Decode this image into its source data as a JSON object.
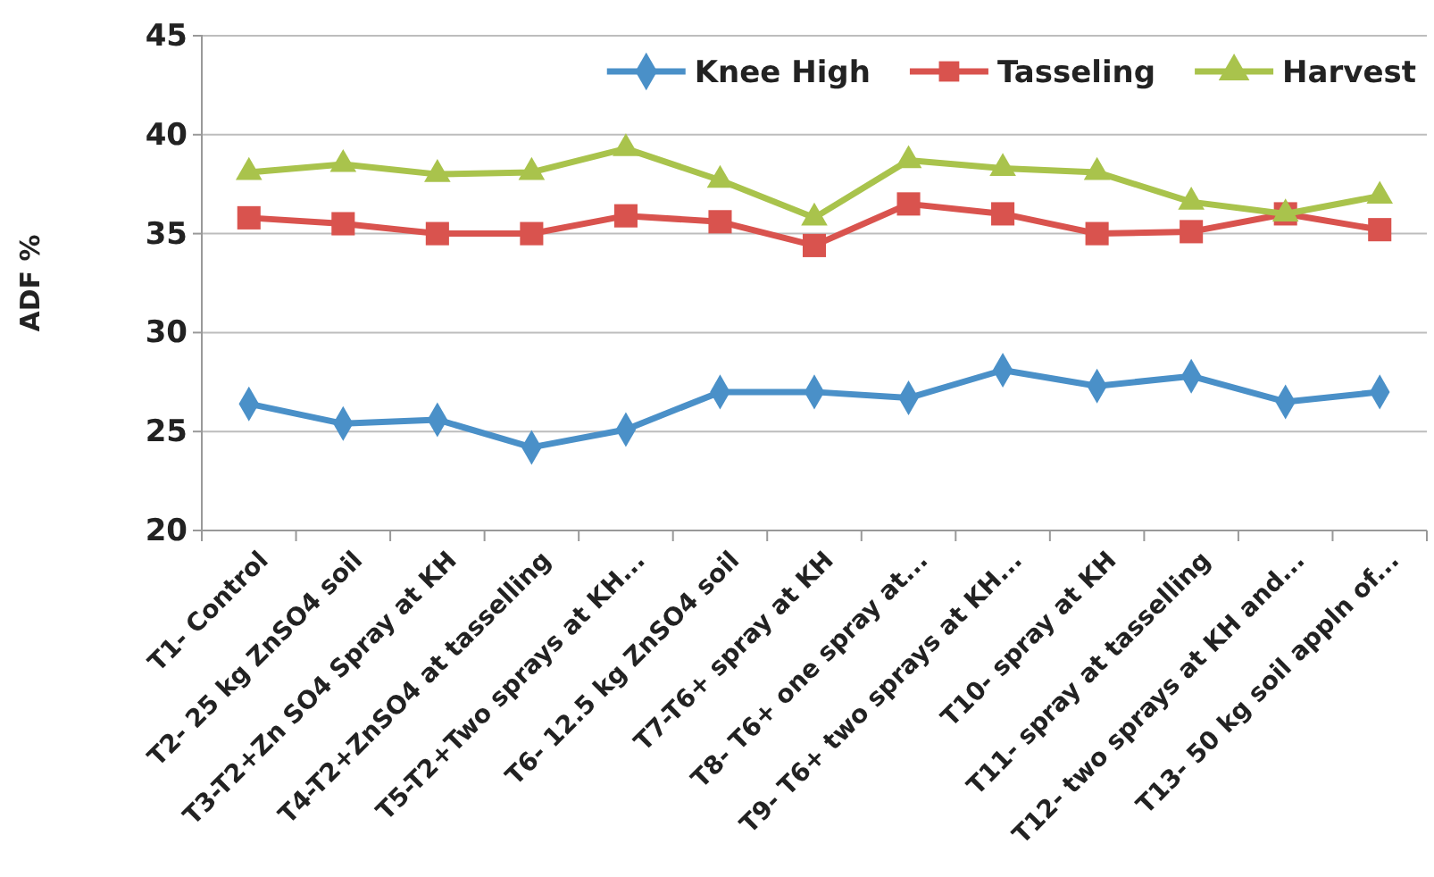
{
  "chart_data": {
    "type": "line",
    "ylabel": "ADF %",
    "categories": [
      "T1- Control",
      "T2- 25 kg ZnSO4 soil",
      "T3-T2+Zn SO4 Spray at KH",
      "T4-T2+ZnSO4 at tasselling",
      "T5-T2+Two sprays at KH...",
      "T6- 12.5 kg ZnSO4 soil",
      "T7-T6+ spray at KH",
      "T8- T6+ one spray at...",
      "T9- T6+ two sprays at KH...",
      "T10- spray at KH",
      "T11- spray at tasselling",
      "T12- two sprays at KH and...",
      "T13- 50 kg soil appln of..."
    ],
    "series": [
      {
        "name": "Knee High",
        "color": "#4a90c8",
        "marker": "diamond",
        "values": [
          26.4,
          25.4,
          25.6,
          24.2,
          25.1,
          27.0,
          27.0,
          26.7,
          28.1,
          27.3,
          27.8,
          26.5,
          27.0
        ]
      },
      {
        "name": "Tasseling",
        "color": "#d9534e",
        "marker": "square",
        "values": [
          35.8,
          35.5,
          35.0,
          35.0,
          35.9,
          35.6,
          34.4,
          36.5,
          36.0,
          35.0,
          35.1,
          36.0,
          35.2
        ]
      },
      {
        "name": "Harvest",
        "color": "#a9c34c",
        "marker": "triangle",
        "values": [
          38.1,
          38.5,
          38.0,
          38.1,
          39.3,
          37.7,
          35.8,
          38.7,
          38.3,
          38.1,
          36.6,
          36.0,
          36.9
        ]
      }
    ],
    "ylim": [
      20,
      45
    ],
    "yticks": [
      20,
      25,
      30,
      35,
      40,
      45
    ],
    "grid": "y",
    "legend": "top right",
    "line_style": "solid"
  }
}
